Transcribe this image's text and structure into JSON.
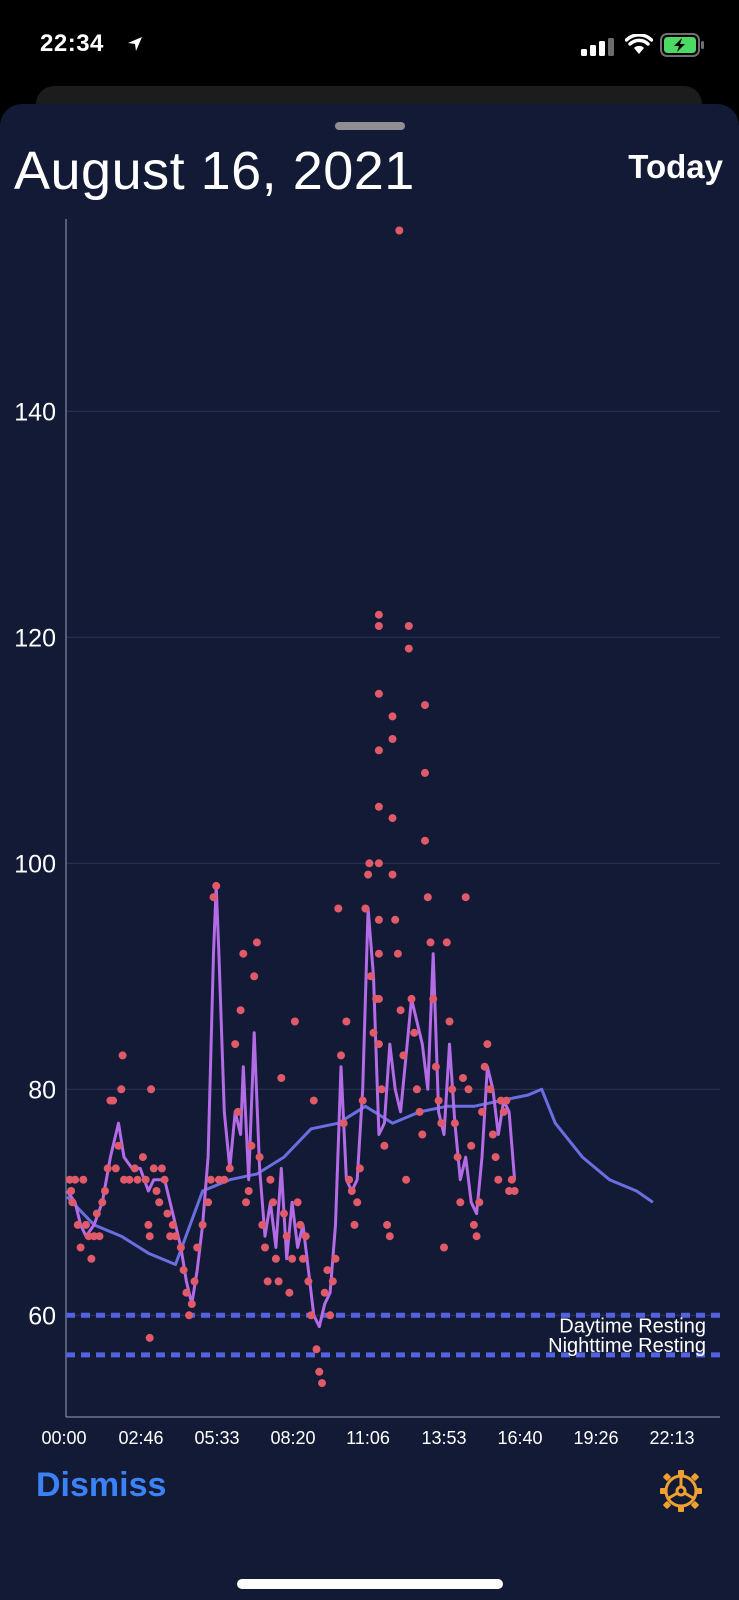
{
  "status_bar": {
    "time": "22:34"
  },
  "header": {
    "title": "August 16, 2021",
    "today_label": "Today"
  },
  "footer": {
    "dismiss_label": "Dismiss",
    "settings_icon": "gear-icon"
  },
  "colors": {
    "background": "#121a35",
    "points": "#e05a6a",
    "smoothed_line": "#b36be6",
    "trend_line": "#6b6ee0",
    "resting_lines": "#5562e0",
    "accent": "#3b82f6",
    "gear": "#f0a030"
  },
  "chart_data": {
    "type": "scatter",
    "x_tick_labels": [
      "00:00",
      "02:46",
      "05:33",
      "08:20",
      "11:06",
      "13:53",
      "16:40",
      "19:26",
      "22:13"
    ],
    "y_tick_labels": [
      "60",
      "80",
      "100",
      "120",
      "140"
    ],
    "ylim": [
      51,
      158
    ],
    "x_range_hours": [
      0,
      24
    ],
    "grid": "horizontal",
    "reference_lines": [
      {
        "label": "Daytime Resting",
        "value": 60
      },
      {
        "label": "Nighttime Resting",
        "value": 56.5
      }
    ],
    "heart_rate_points_est": [
      [
        0.1,
        72
      ],
      [
        0.15,
        71
      ],
      [
        0.2,
        70
      ],
      [
        0.3,
        72
      ],
      [
        0.4,
        68
      ],
      [
        0.5,
        66
      ],
      [
        0.6,
        72
      ],
      [
        0.7,
        68
      ],
      [
        0.8,
        67
      ],
      [
        0.9,
        65
      ],
      [
        1.0,
        67
      ],
      [
        1.1,
        69
      ],
      [
        1.2,
        67
      ],
      [
        1.3,
        70
      ],
      [
        1.4,
        71
      ],
      [
        1.5,
        73
      ],
      [
        1.6,
        79
      ],
      [
        1.7,
        79
      ],
      [
        1.8,
        73
      ],
      [
        1.9,
        75
      ],
      [
        2.0,
        80
      ],
      [
        2.05,
        83
      ],
      [
        2.1,
        72
      ],
      [
        2.3,
        72
      ],
      [
        2.5,
        73
      ],
      [
        2.6,
        72
      ],
      [
        2.8,
        74
      ],
      [
        2.9,
        72
      ],
      [
        3.0,
        68
      ],
      [
        3.05,
        67
      ],
      [
        3.1,
        80
      ],
      [
        3.2,
        73
      ],
      [
        3.3,
        71
      ],
      [
        3.4,
        70
      ],
      [
        3.5,
        73
      ],
      [
        3.6,
        72
      ],
      [
        3.7,
        69
      ],
      [
        3.8,
        67
      ],
      [
        3.9,
        68
      ],
      [
        4.0,
        67
      ],
      [
        3.05,
        58
      ],
      [
        4.2,
        66
      ],
      [
        4.3,
        64
      ],
      [
        4.4,
        62
      ],
      [
        4.5,
        60
      ],
      [
        4.6,
        61
      ],
      [
        4.7,
        63
      ],
      [
        4.8,
        66
      ],
      [
        5.0,
        68
      ],
      [
        5.2,
        70
      ],
      [
        5.3,
        72
      ],
      [
        5.4,
        97
      ],
      [
        5.5,
        98
      ],
      [
        5.6,
        72
      ],
      [
        5.8,
        72
      ],
      [
        6.0,
        73
      ],
      [
        6.2,
        84
      ],
      [
        6.3,
        78
      ],
      [
        6.4,
        87
      ],
      [
        6.5,
        92
      ],
      [
        6.6,
        70
      ],
      [
        6.7,
        71
      ],
      [
        6.8,
        75
      ],
      [
        6.9,
        90
      ],
      [
        7.0,
        93
      ],
      [
        7.1,
        74
      ],
      [
        7.2,
        68
      ],
      [
        7.3,
        66
      ],
      [
        7.4,
        63
      ],
      [
        7.5,
        72
      ],
      [
        7.6,
        70
      ],
      [
        7.7,
        65
      ],
      [
        7.8,
        63
      ],
      [
        7.9,
        81
      ],
      [
        8.0,
        69
      ],
      [
        8.1,
        67
      ],
      [
        8.2,
        62
      ],
      [
        8.3,
        65
      ],
      [
        8.4,
        86
      ],
      [
        8.5,
        70
      ],
      [
        8.6,
        68
      ],
      [
        8.7,
        65
      ],
      [
        8.8,
        67
      ],
      [
        8.9,
        63
      ],
      [
        9.0,
        60
      ],
      [
        9.1,
        79
      ],
      [
        9.2,
        57
      ],
      [
        9.3,
        55
      ],
      [
        9.4,
        54
      ],
      [
        9.5,
        62
      ],
      [
        9.6,
        64
      ],
      [
        9.7,
        60
      ],
      [
        9.8,
        63
      ],
      [
        9.9,
        65
      ],
      [
        10.0,
        96
      ],
      [
        10.1,
        83
      ],
      [
        10.2,
        77
      ],
      [
        10.3,
        86
      ],
      [
        10.4,
        72
      ],
      [
        10.5,
        71
      ],
      [
        10.6,
        68
      ],
      [
        10.7,
        70
      ],
      [
        10.8,
        73
      ],
      [
        10.9,
        79
      ],
      [
        11.0,
        96
      ],
      [
        11.1,
        99
      ],
      [
        11.15,
        100
      ],
      [
        11.2,
        90
      ],
      [
        11.3,
        85
      ],
      [
        11.4,
        88
      ],
      [
        11.5,
        122
      ],
      [
        11.5,
        121
      ],
      [
        11.5,
        115
      ],
      [
        11.5,
        110
      ],
      [
        11.5,
        105
      ],
      [
        11.5,
        100
      ],
      [
        11.5,
        95
      ],
      [
        11.5,
        92
      ],
      [
        11.5,
        88
      ],
      [
        11.5,
        84
      ],
      [
        11.6,
        80
      ],
      [
        11.7,
        75
      ],
      [
        11.8,
        68
      ],
      [
        11.9,
        67
      ],
      [
        12.0,
        113
      ],
      [
        12.0,
        111
      ],
      [
        12.0,
        104
      ],
      [
        12.0,
        99
      ],
      [
        12.1,
        95
      ],
      [
        12.2,
        92
      ],
      [
        12.3,
        87
      ],
      [
        12.4,
        83
      ],
      [
        12.5,
        72
      ],
      [
        12.6,
        121
      ],
      [
        12.6,
        119
      ],
      [
        12.7,
        88
      ],
      [
        12.8,
        85
      ],
      [
        12.9,
        80
      ],
      [
        13.0,
        78
      ],
      [
        13.1,
        76
      ],
      [
        13.2,
        114
      ],
      [
        13.2,
        108
      ],
      [
        13.2,
        102
      ],
      [
        13.3,
        97
      ],
      [
        13.4,
        93
      ],
      [
        13.5,
        88
      ],
      [
        13.6,
        82
      ],
      [
        13.7,
        79
      ],
      [
        13.8,
        77
      ],
      [
        13.9,
        66
      ],
      [
        14.0,
        93
      ],
      [
        14.1,
        86
      ],
      [
        14.2,
        80
      ],
      [
        14.3,
        77
      ],
      [
        14.4,
        74
      ],
      [
        14.5,
        70
      ],
      [
        14.6,
        81
      ],
      [
        14.7,
        97
      ],
      [
        14.8,
        80
      ],
      [
        14.9,
        75
      ],
      [
        15.0,
        68
      ],
      [
        15.1,
        67
      ],
      [
        15.2,
        70
      ],
      [
        15.3,
        78
      ],
      [
        15.4,
        82
      ],
      [
        15.5,
        84
      ],
      [
        15.6,
        80
      ],
      [
        15.7,
        76
      ],
      [
        15.8,
        74
      ],
      [
        15.9,
        72
      ],
      [
        16.0,
        79
      ],
      [
        16.1,
        78
      ],
      [
        16.2,
        79
      ],
      [
        16.3,
        71
      ],
      [
        16.4,
        72
      ],
      [
        16.5,
        71
      ],
      [
        12.25,
        156
      ]
    ],
    "smoothed_heart_rate_est": [
      [
        0,
        71
      ],
      [
        0.3,
        70
      ],
      [
        0.5,
        68
      ],
      [
        0.7,
        67
      ],
      [
        1.0,
        68
      ],
      [
        1.3,
        70
      ],
      [
        1.6,
        74
      ],
      [
        1.9,
        77
      ],
      [
        2.1,
        74
      ],
      [
        2.4,
        73
      ],
      [
        2.7,
        73
      ],
      [
        3.0,
        71
      ],
      [
        3.2,
        72
      ],
      [
        3.4,
        72
      ],
      [
        3.6,
        72
      ],
      [
        3.8,
        70
      ],
      [
        4.0,
        68
      ],
      [
        4.2,
        66
      ],
      [
        4.4,
        63
      ],
      [
        4.6,
        61
      ],
      [
        4.8,
        64
      ],
      [
        5.0,
        68
      ],
      [
        5.2,
        74
      ],
      [
        5.4,
        92
      ],
      [
        5.5,
        98
      ],
      [
        5.6,
        92
      ],
      [
        5.8,
        78
      ],
      [
        6.0,
        73
      ],
      [
        6.2,
        78
      ],
      [
        6.4,
        76
      ],
      [
        6.5,
        82
      ],
      [
        6.7,
        72
      ],
      [
        6.9,
        85
      ],
      [
        7.1,
        73
      ],
      [
        7.3,
        67
      ],
      [
        7.5,
        70
      ],
      [
        7.7,
        66
      ],
      [
        7.9,
        73
      ],
      [
        8.1,
        65
      ],
      [
        8.3,
        70
      ],
      [
        8.5,
        66
      ],
      [
        8.7,
        68
      ],
      [
        8.9,
        64
      ],
      [
        9.1,
        60
      ],
      [
        9.3,
        59
      ],
      [
        9.5,
        61
      ],
      [
        9.7,
        62
      ],
      [
        9.9,
        68
      ],
      [
        10.1,
        82
      ],
      [
        10.3,
        72
      ],
      [
        10.5,
        71
      ],
      [
        10.7,
        72
      ],
      [
        10.9,
        80
      ],
      [
        11.1,
        96
      ],
      [
        11.3,
        90
      ],
      [
        11.5,
        76
      ],
      [
        11.7,
        77
      ],
      [
        11.9,
        84
      ],
      [
        12.1,
        80
      ],
      [
        12.3,
        78
      ],
      [
        12.5,
        83
      ],
      [
        12.7,
        88
      ],
      [
        12.9,
        86
      ],
      [
        13.1,
        84
      ],
      [
        13.3,
        80
      ],
      [
        13.5,
        92
      ],
      [
        13.7,
        78
      ],
      [
        13.9,
        76
      ],
      [
        14.1,
        84
      ],
      [
        14.3,
        77
      ],
      [
        14.5,
        72
      ],
      [
        14.7,
        74
      ],
      [
        14.9,
        70
      ],
      [
        15.1,
        69
      ],
      [
        15.3,
        74
      ],
      [
        15.5,
        82
      ],
      [
        15.7,
        80
      ],
      [
        15.9,
        76
      ],
      [
        16.1,
        79
      ],
      [
        16.3,
        78
      ],
      [
        16.5,
        72
      ]
    ],
    "average_trend_est": [
      [
        0,
        70.5
      ],
      [
        1,
        68
      ],
      [
        2,
        67
      ],
      [
        3,
        65.5
      ],
      [
        4,
        64.5
      ],
      [
        5,
        71
      ],
      [
        6,
        72
      ],
      [
        7,
        72.5
      ],
      [
        8,
        74
      ],
      [
        9,
        76.5
      ],
      [
        10,
        77
      ],
      [
        11,
        78.5
      ],
      [
        12,
        77
      ],
      [
        13,
        78
      ],
      [
        14,
        78.5
      ],
      [
        15,
        78.5
      ],
      [
        16,
        79
      ],
      [
        17,
        79.5
      ],
      [
        17.5,
        80
      ],
      [
        18,
        77
      ],
      [
        19,
        74
      ],
      [
        20,
        72
      ],
      [
        21,
        71
      ],
      [
        21.6,
        70
      ]
    ]
  }
}
